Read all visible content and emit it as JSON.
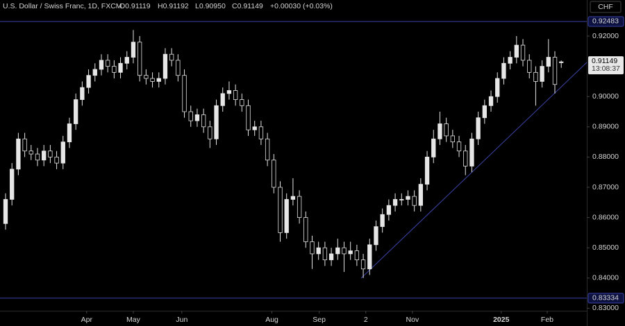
{
  "chart_data": {
    "type": "candlestick",
    "title": "U.S. Dollar / Swiss Franc, 1D, FXCM",
    "ohlc_text": [
      "O0.91119",
      "H0.91192",
      "L0.90950",
      "C0.91149",
      "+0.00030 (+0.03%)"
    ],
    "currency": "CHF",
    "countdown": "13:08:37",
    "up_color": "#e6e6e6",
    "down_color": "#000000",
    "level_color": "#3b43a6",
    "open": [
      0.858,
      0.866,
      0.876,
      0.886,
      0.882,
      0.881,
      0.879,
      0.882,
      0.88,
      0.878,
      0.885,
      0.891,
      0.899,
      0.903,
      0.907,
      0.909,
      0.912,
      0.91,
      0.908,
      0.911,
      0.913,
      0.918,
      0.907,
      0.906,
      0.905,
      0.906,
      0.914,
      0.912,
      0.907,
      0.895,
      0.892,
      0.894,
      0.89,
      0.886,
      0.897,
      0.901,
      0.902,
      0.899,
      0.897,
      0.889,
      0.89,
      0.886,
      0.879,
      0.87,
      0.855,
      0.866,
      0.867,
      0.86,
      0.852,
      0.848,
      0.85,
      0.846,
      0.848,
      0.85,
      0.848,
      0.849,
      0.846,
      0.843,
      0.851,
      0.857,
      0.861,
      0.864,
      0.866,
      0.866,
      0.867,
      0.864,
      0.871,
      0.88,
      0.886,
      0.891,
      0.887,
      0.885,
      0.882,
      0.877,
      0.886,
      0.893,
      0.897,
      0.9,
      0.906,
      0.911,
      0.913,
      0.917,
      0.912,
      0.908,
      0.905,
      0.91,
      0.913,
      0.91119
    ],
    "high": [
      0.868,
      0.878,
      0.888,
      0.888,
      0.884,
      0.883,
      0.884,
      0.884,
      0.882,
      0.887,
      0.893,
      0.901,
      0.905,
      0.909,
      0.911,
      0.914,
      0.914,
      0.912,
      0.913,
      0.915,
      0.922,
      0.92,
      0.909,
      0.908,
      0.908,
      0.916,
      0.916,
      0.914,
      0.909,
      0.897,
      0.896,
      0.896,
      0.892,
      0.899,
      0.903,
      0.905,
      0.904,
      0.901,
      0.899,
      0.892,
      0.892,
      0.888,
      0.881,
      0.872,
      0.868,
      0.873,
      0.869,
      0.862,
      0.854,
      0.852,
      0.852,
      0.85,
      0.853,
      0.852,
      0.852,
      0.851,
      0.848,
      0.853,
      0.859,
      0.863,
      0.866,
      0.868,
      0.868,
      0.869,
      0.869,
      0.873,
      0.882,
      0.889,
      0.895,
      0.893,
      0.889,
      0.887,
      0.884,
      0.888,
      0.895,
      0.899,
      0.902,
      0.908,
      0.913,
      0.915,
      0.92,
      0.919,
      0.914,
      0.91,
      0.912,
      0.919,
      0.915,
      0.91192
    ],
    "low": [
      0.856,
      0.864,
      0.874,
      0.88,
      0.879,
      0.877,
      0.877,
      0.878,
      0.876,
      0.876,
      0.883,
      0.889,
      0.897,
      0.901,
      0.905,
      0.907,
      0.908,
      0.906,
      0.906,
      0.909,
      0.911,
      0.905,
      0.904,
      0.903,
      0.903,
      0.904,
      0.91,
      0.905,
      0.893,
      0.89,
      0.89,
      0.888,
      0.883,
      0.884,
      0.895,
      0.899,
      0.897,
      0.895,
      0.887,
      0.887,
      0.884,
      0.877,
      0.868,
      0.852,
      0.853,
      0.864,
      0.858,
      0.85,
      0.843,
      0.846,
      0.844,
      0.844,
      0.846,
      0.842,
      0.846,
      0.844,
      0.84,
      0.841,
      0.849,
      0.855,
      0.859,
      0.862,
      0.864,
      0.864,
      0.862,
      0.862,
      0.869,
      0.878,
      0.884,
      0.885,
      0.883,
      0.88,
      0.874,
      0.875,
      0.884,
      0.891,
      0.895,
      0.898,
      0.904,
      0.909,
      0.911,
      0.91,
      0.906,
      0.897,
      0.903,
      0.908,
      0.901,
      0.9095
    ],
    "close": [
      0.866,
      0.876,
      0.886,
      0.882,
      0.881,
      0.879,
      0.882,
      0.88,
      0.878,
      0.885,
      0.891,
      0.899,
      0.903,
      0.907,
      0.909,
      0.912,
      0.91,
      0.908,
      0.911,
      0.913,
      0.918,
      0.907,
      0.906,
      0.905,
      0.906,
      0.914,
      0.912,
      0.907,
      0.895,
      0.892,
      0.894,
      0.89,
      0.886,
      0.897,
      0.901,
      0.902,
      0.899,
      0.897,
      0.889,
      0.89,
      0.886,
      0.879,
      0.87,
      0.855,
      0.866,
      0.867,
      0.86,
      0.852,
      0.848,
      0.85,
      0.846,
      0.848,
      0.85,
      0.848,
      0.849,
      0.846,
      0.843,
      0.851,
      0.857,
      0.861,
      0.864,
      0.866,
      0.866,
      0.867,
      0.864,
      0.871,
      0.88,
      0.886,
      0.891,
      0.887,
      0.885,
      0.882,
      0.877,
      0.886,
      0.893,
      0.897,
      0.9,
      0.906,
      0.911,
      0.913,
      0.917,
      0.912,
      0.908,
      0.905,
      0.91,
      0.913,
      0.904,
      0.91149
    ],
    "ylim": [
      0.82918,
      0.93193
    ],
    "yticks": [
      {
        "value": 0.83,
        "label": "0.83000"
      },
      {
        "value": 0.84,
        "label": "0.84000"
      },
      {
        "value": 0.85,
        "label": "0.85000"
      },
      {
        "value": 0.86,
        "label": "0.86000"
      },
      {
        "value": 0.87,
        "label": "0.87000"
      },
      {
        "value": 0.88,
        "label": "0.88000"
      },
      {
        "value": 0.89,
        "label": "0.89000"
      },
      {
        "value": 0.9,
        "label": "0.90000"
      },
      {
        "value": 0.92,
        "label": "0.92000"
      }
    ],
    "xlim": [
      -0.87,
      91
    ],
    "xticks": [
      {
        "value": 12.7,
        "label": "Apr"
      },
      {
        "value": 20,
        "label": "May"
      },
      {
        "value": 27.6,
        "label": "Jun"
      },
      {
        "value": 41.7,
        "label": "Aug"
      },
      {
        "value": 49.1,
        "label": "Sep"
      },
      {
        "value": 56.4,
        "label": "2"
      },
      {
        "value": 63.7,
        "label": "Nov"
      },
      {
        "value": 77.6,
        "label": "2025"
      },
      {
        "value": 84.8,
        "label": "Feb"
      }
    ],
    "levels": [
      0.92483,
      0.83334
    ]
  }
}
